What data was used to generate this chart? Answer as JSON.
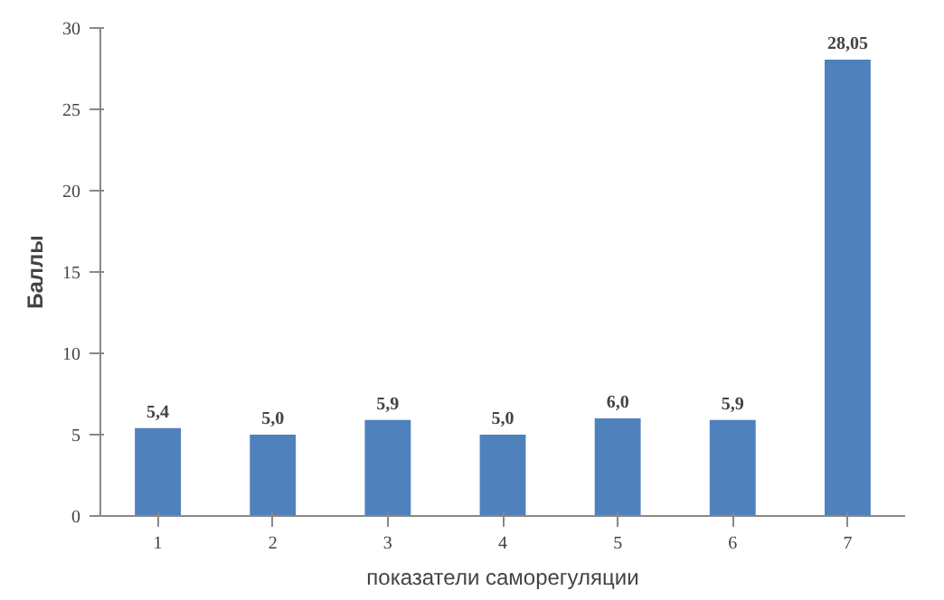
{
  "chart_data": {
    "type": "bar",
    "categories": [
      "1",
      "2",
      "3",
      "4",
      "5",
      "6",
      "7"
    ],
    "values": [
      5.4,
      5.0,
      5.9,
      5.0,
      6.0,
      5.9,
      28.05
    ],
    "value_labels": [
      "5,4",
      "5,0",
      "5,9",
      "5,0",
      "6,0",
      "5,9",
      "28,05"
    ],
    "color": "#4f81bd",
    "xlabel": "показатели саморегуляции",
    "ylabel": "Баллы",
    "ylim": [
      0,
      30
    ],
    "yticks": [
      0,
      5,
      10,
      15,
      20,
      25,
      30
    ],
    "grid": false
  }
}
